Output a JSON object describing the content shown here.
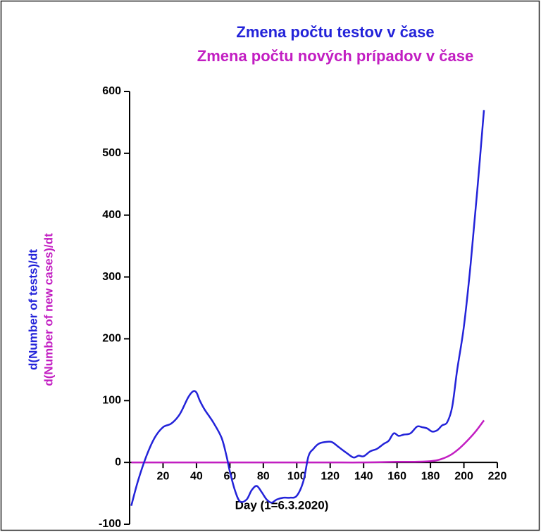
{
  "chart_data": {
    "type": "line",
    "title": "Zmena počtu testov v čase",
    "subtitle": "Zmena počtu nových prípadov v čase",
    "xlabel": "Day (1=6.3.2020)",
    "ylabel": [
      "d(Number of tests)/dt",
      "d(Number of new cases)/dt"
    ],
    "xlim": [
      0,
      220
    ],
    "xticks": [
      20,
      40,
      60,
      80,
      100,
      120,
      140,
      160,
      180,
      200,
      220
    ],
    "ylim": [
      -100,
      600
    ],
    "yticks": [
      -100,
      0,
      100,
      200,
      300,
      400,
      500,
      600
    ],
    "series": [
      {
        "color": "#2323d9",
        "x": [
          1,
          5,
          10,
          15,
          20,
          25,
          30,
          35,
          38,
          40,
          42,
          45,
          50,
          55,
          58,
          60,
          63,
          66,
          70,
          73,
          76,
          79,
          82,
          85,
          88,
          92,
          96,
          100,
          104,
          107,
          110,
          113,
          117,
          121,
          125,
          130,
          134,
          137,
          140,
          144,
          148,
          152,
          155,
          158,
          161,
          164,
          168,
          172,
          175,
          178,
          181,
          184,
          187,
          190,
          193,
          196,
          200,
          204,
          208,
          212
        ],
        "values": [
          -70,
          -30,
          10,
          40,
          57,
          63,
          78,
          105,
          115,
          113,
          100,
          85,
          65,
          40,
          10,
          -15,
          -45,
          -63,
          -60,
          -45,
          -38,
          -48,
          -60,
          -65,
          -60,
          -57,
          -57,
          -54,
          -30,
          10,
          22,
          30,
          33,
          33,
          25,
          15,
          8,
          11,
          10,
          18,
          22,
          30,
          35,
          47,
          43,
          45,
          47,
          58,
          57,
          55,
          50,
          52,
          60,
          65,
          90,
          150,
          220,
          320,
          440,
          570
        ]
      },
      {
        "color": "#c21ec2",
        "x": [
          1,
          20,
          40,
          60,
          80,
          100,
          120,
          140,
          160,
          170,
          180,
          186,
          192,
          197,
          202,
          207,
          212
        ],
        "values": [
          0,
          0,
          0,
          0,
          0,
          0,
          0,
          0,
          1,
          1,
          2,
          5,
          12,
          22,
          35,
          50,
          68
        ]
      }
    ]
  }
}
